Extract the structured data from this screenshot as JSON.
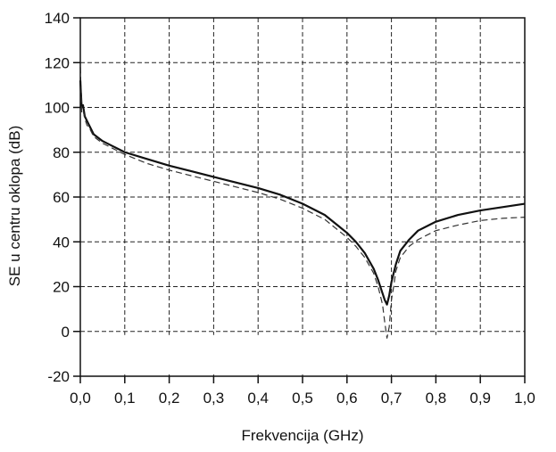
{
  "chart_data": {
    "type": "line",
    "title": "",
    "xlabel": "Frekvencija (GHz)",
    "ylabel": "SE u centru oklopa (dB)",
    "xlim": [
      0.0,
      1.0
    ],
    "ylim": [
      -20,
      140
    ],
    "x_ticks": [
      "0,0",
      "0,1",
      "0,2",
      "0,3",
      "0,4",
      "0,5",
      "0,6",
      "0,7",
      "0,8",
      "0,9",
      "1,0"
    ],
    "x_tick_values": [
      0,
      0.1,
      0.2,
      0.3,
      0.4,
      0.5,
      0.6,
      0.7,
      0.8,
      0.9,
      1.0
    ],
    "y_ticks": [
      "-20",
      "0",
      "20",
      "40",
      "60",
      "80",
      "100",
      "120",
      "140"
    ],
    "y_tick_values": [
      -20,
      0,
      20,
      40,
      60,
      80,
      100,
      120,
      140
    ],
    "grid": true,
    "legend": "none",
    "series": [
      {
        "style": "solid",
        "color": "#111111",
        "x": [
          0.0,
          0.003,
          0.006,
          0.01,
          0.015,
          0.02,
          0.03,
          0.05,
          0.08,
          0.1,
          0.15,
          0.2,
          0.25,
          0.3,
          0.35,
          0.4,
          0.45,
          0.5,
          0.55,
          0.6,
          0.62,
          0.64,
          0.66,
          0.67,
          0.68,
          0.685,
          0.69,
          0.695,
          0.7,
          0.71,
          0.72,
          0.74,
          0.76,
          0.8,
          0.85,
          0.9,
          0.95,
          1.0
        ],
        "y": [
          112,
          100,
          101,
          96,
          94,
          92,
          88,
          85,
          82,
          80,
          77,
          74,
          71.5,
          69,
          66.5,
          64,
          61,
          57,
          52,
          44,
          40,
          35,
          28,
          23,
          17,
          14,
          12,
          16,
          22,
          30,
          36,
          41,
          45,
          49,
          52,
          54,
          55.5,
          57
        ]
      },
      {
        "style": "dashed",
        "color": "#333333",
        "x": [
          0.0,
          0.003,
          0.006,
          0.01,
          0.015,
          0.02,
          0.03,
          0.05,
          0.08,
          0.1,
          0.15,
          0.2,
          0.25,
          0.3,
          0.35,
          0.4,
          0.45,
          0.5,
          0.55,
          0.6,
          0.62,
          0.64,
          0.66,
          0.67,
          0.68,
          0.685,
          0.69,
          0.695,
          0.7,
          0.705,
          0.71,
          0.72,
          0.74,
          0.76,
          0.8,
          0.85,
          0.9,
          0.95,
          1.0
        ],
        "y": [
          118,
          98,
          99,
          95,
          92,
          91,
          87,
          84,
          81,
          79,
          75,
          72,
          69.5,
          67,
          64.5,
          62,
          59,
          55,
          50,
          42,
          38,
          33,
          26,
          20,
          12,
          4,
          -3,
          2,
          14,
          20,
          27,
          33,
          38,
          41,
          45,
          47.5,
          49.5,
          50.5,
          51
        ]
      }
    ]
  }
}
